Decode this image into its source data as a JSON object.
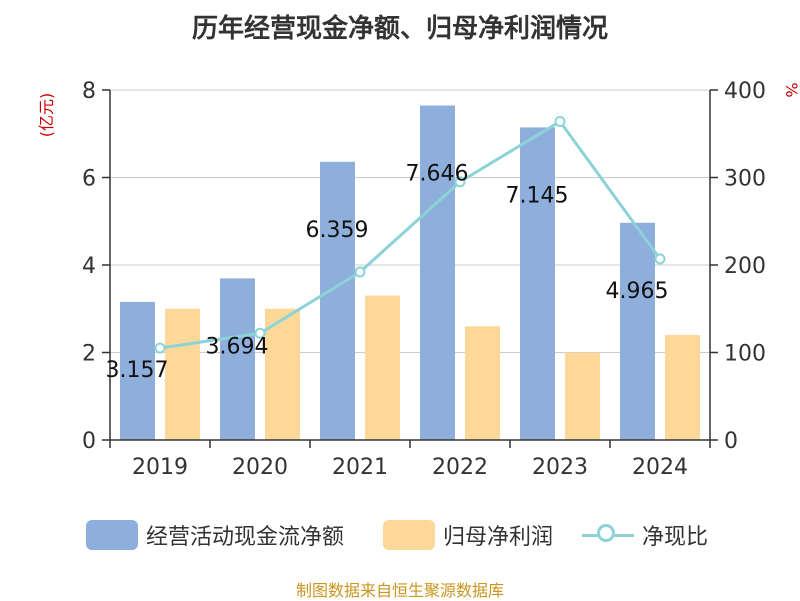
{
  "title": "历年经营现金净额、归母净利润情况",
  "source": "制图数据来自恒生聚源数据库",
  "colors": {
    "cash": "#8eaedb",
    "profit": "#fdd899",
    "ratio": "#8cd3d8",
    "left_unit": "#cc0000",
    "right_unit": "#cc0000",
    "source": "#c8961e"
  },
  "chart_data": {
    "type": "bar",
    "categories": [
      "2019",
      "2020",
      "2021",
      "2022",
      "2023",
      "2024"
    ],
    "left_axis": {
      "unit": "(亿元)",
      "ylim": [
        0,
        8
      ],
      "ticks": [
        0,
        2,
        4,
        6,
        8
      ]
    },
    "right_axis": {
      "unit": "%",
      "ylim": [
        0,
        400
      ],
      "ticks": [
        0,
        100,
        200,
        300,
        400
      ]
    },
    "series": [
      {
        "name": "经营活动现金流净额",
        "type": "bar",
        "axis": "left",
        "values": [
          3.157,
          3.694,
          6.359,
          7.646,
          7.145,
          4.965
        ],
        "labels": [
          "3.157",
          "3.694",
          "6.359",
          "7.646",
          "7.145",
          "4.965"
        ]
      },
      {
        "name": "归母净利润",
        "type": "bar",
        "axis": "left",
        "values": [
          3.0,
          3.0,
          3.3,
          2.6,
          2.0,
          2.4
        ]
      },
      {
        "name": "净现比",
        "type": "line",
        "axis": "right",
        "values": [
          105,
          122,
          192,
          295,
          364,
          207
        ]
      }
    ],
    "grid": true
  }
}
